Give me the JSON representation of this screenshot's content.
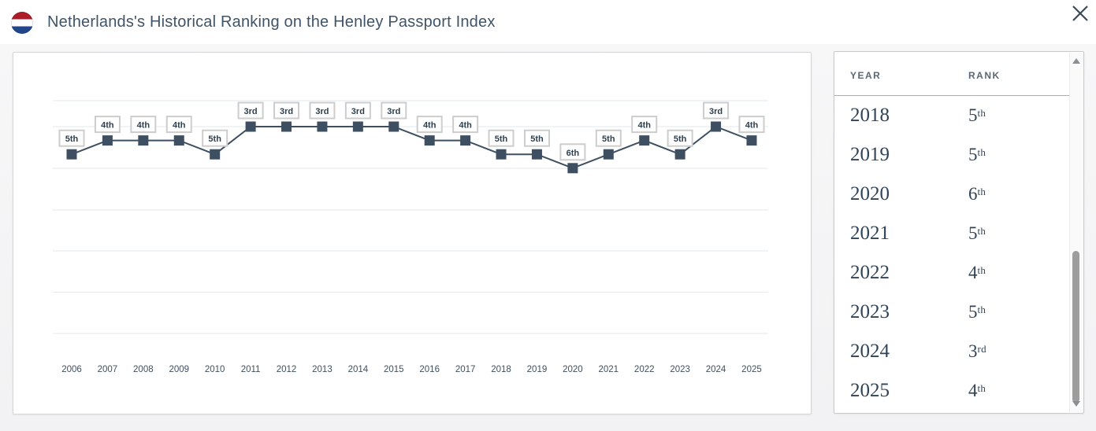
{
  "header": {
    "title": "Netherlands's Historical Ranking on the Henley Passport Index",
    "flag": {
      "country": "Netherlands",
      "stripe_colors": [
        "#AE1C28",
        "#FFFFFF",
        "#21468B"
      ]
    }
  },
  "chart_data": {
    "type": "line",
    "title": "Netherlands's Historical Ranking on the Henley Passport Index",
    "categories": [
      "2006",
      "2007",
      "2008",
      "2009",
      "2010",
      "2011",
      "2012",
      "2013",
      "2014",
      "2015",
      "2016",
      "2017",
      "2018",
      "2019",
      "2020",
      "2021",
      "2022",
      "2023",
      "2024",
      "2025"
    ],
    "series": [
      {
        "name": "Rank",
        "values": [
          5,
          4,
          4,
          4,
          5,
          3,
          3,
          3,
          3,
          3,
          4,
          4,
          5,
          5,
          6,
          5,
          4,
          5,
          3,
          4
        ]
      }
    ],
    "point_labels": [
      "5th",
      "4th",
      "4th",
      "4th",
      "5th",
      "3rd",
      "3rd",
      "3rd",
      "3rd",
      "3rd",
      "4th",
      "4th",
      "5th",
      "5th",
      "6th",
      "5th",
      "4th",
      "5th",
      "3rd",
      "4th"
    ],
    "xlabel": "",
    "ylabel": "",
    "y_axis_inverted_rank": true,
    "grid": true,
    "legend": "none",
    "marker": "square",
    "line_color": "#3D4F61",
    "grid_color": "#E3E9EE",
    "label_box_border": "#CDCDCD",
    "label_text_color": "#2E4050",
    "axis_text_color": "#40505F"
  },
  "table": {
    "columns": [
      "YEAR",
      "RANK"
    ],
    "rows": [
      {
        "year": "2018",
        "rank_num": "5",
        "rank_suffix": "th"
      },
      {
        "year": "2019",
        "rank_num": "5",
        "rank_suffix": "th"
      },
      {
        "year": "2020",
        "rank_num": "6",
        "rank_suffix": "th"
      },
      {
        "year": "2021",
        "rank_num": "5",
        "rank_suffix": "th"
      },
      {
        "year": "2022",
        "rank_num": "4",
        "rank_suffix": "th"
      },
      {
        "year": "2023",
        "rank_num": "5",
        "rank_suffix": "th"
      },
      {
        "year": "2024",
        "rank_num": "3",
        "rank_suffix": "rd"
      },
      {
        "year": "2025",
        "rank_num": "4",
        "rank_suffix": "th"
      }
    ]
  }
}
